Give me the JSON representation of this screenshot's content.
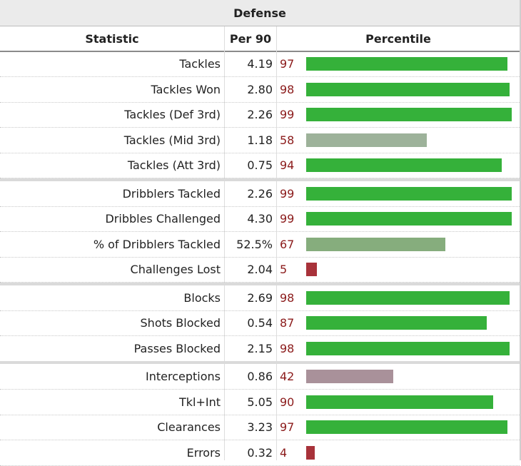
{
  "table": {
    "caption": "Defense",
    "columns": {
      "statistic": "Statistic",
      "per90": "Per 90",
      "percentile": "Percentile"
    }
  },
  "colors": {
    "high": "#35b13a",
    "above_avg": "#86ad7d",
    "mid": "#9db29a",
    "below_avg": "#a9919a",
    "low": "#a8323a",
    "percentile_text": "#8b1a1a"
  },
  "chart_data": {
    "type": "bar",
    "title": "Defense",
    "columns": [
      "Statistic",
      "Per 90",
      "Percentile"
    ],
    "xlim": [
      0,
      100
    ],
    "groups": [
      [
        {
          "stat": "Tackles",
          "per90": "4.19",
          "percentile": 97
        },
        {
          "stat": "Tackles Won",
          "per90": "2.80",
          "percentile": 98
        },
        {
          "stat": "Tackles (Def 3rd)",
          "per90": "2.26",
          "percentile": 99
        },
        {
          "stat": "Tackles (Mid 3rd)",
          "per90": "1.18",
          "percentile": 58
        },
        {
          "stat": "Tackles (Att 3rd)",
          "per90": "0.75",
          "percentile": 94
        }
      ],
      [
        {
          "stat": "Dribblers Tackled",
          "per90": "2.26",
          "percentile": 99
        },
        {
          "stat": "Dribbles Challenged",
          "per90": "4.30",
          "percentile": 99
        },
        {
          "stat": "% of Dribblers Tackled",
          "per90": "52.5%",
          "percentile": 67
        },
        {
          "stat": "Challenges Lost",
          "per90": "2.04",
          "percentile": 5
        }
      ],
      [
        {
          "stat": "Blocks",
          "per90": "2.69",
          "percentile": 98
        },
        {
          "stat": "Shots Blocked",
          "per90": "0.54",
          "percentile": 87
        },
        {
          "stat": "Passes Blocked",
          "per90": "2.15",
          "percentile": 98
        }
      ],
      [
        {
          "stat": "Interceptions",
          "per90": "0.86",
          "percentile": 42
        },
        {
          "stat": "Tkl+Int",
          "per90": "5.05",
          "percentile": 90
        },
        {
          "stat": "Clearances",
          "per90": "3.23",
          "percentile": 97
        },
        {
          "stat": "Errors",
          "per90": "0.32",
          "percentile": 4
        }
      ]
    ]
  }
}
